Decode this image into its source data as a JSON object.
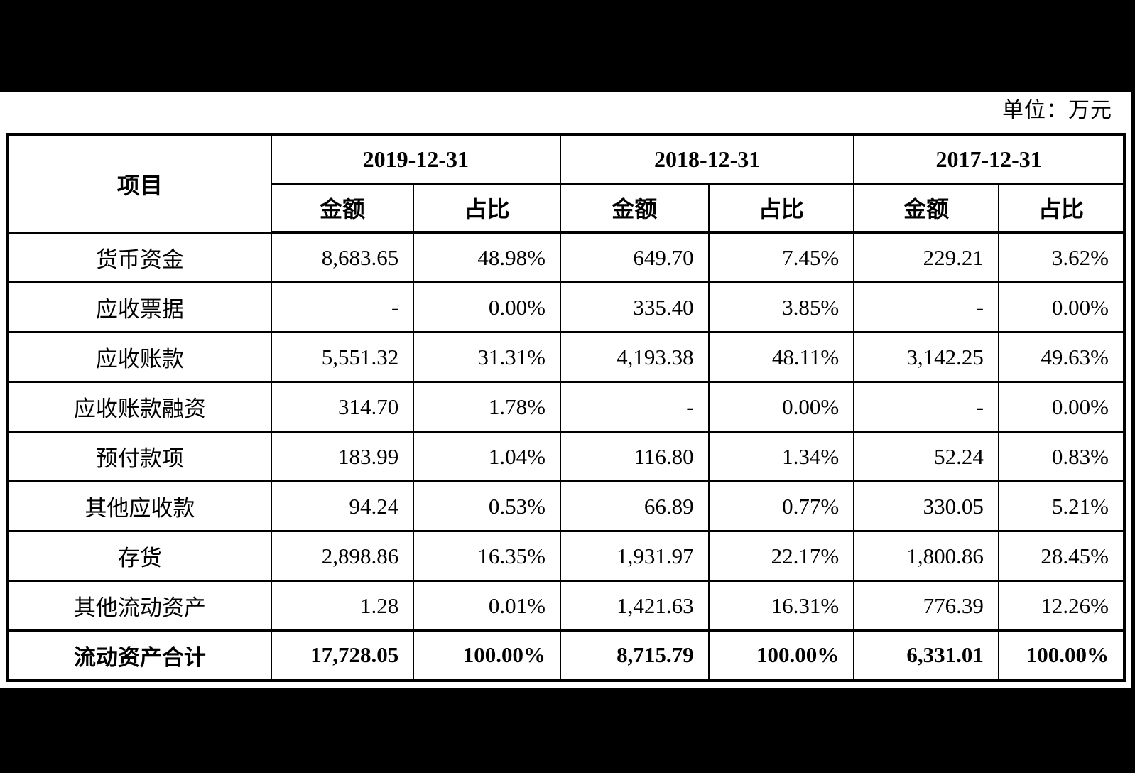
{
  "page": {
    "unit_label": "单位：万元"
  },
  "colors": {
    "frame_bg": "#000000",
    "page_bg": "#ffffff",
    "border": "#000000",
    "text": "#000000"
  },
  "table": {
    "item_header": "项目",
    "period_headers": [
      "2019-12-31",
      "2018-12-31",
      "2017-12-31"
    ],
    "sub_headers": {
      "amount": "金额",
      "ratio": "占比"
    },
    "rows": [
      {
        "item": "货币资金",
        "values": [
          "8,683.65",
          "48.98%",
          "649.70",
          "7.45%",
          "229.21",
          "3.62%"
        ],
        "bold": false
      },
      {
        "item": "应收票据",
        "values": [
          "-",
          "0.00%",
          "335.40",
          "3.85%",
          "-",
          "0.00%"
        ],
        "bold": false
      },
      {
        "item": "应收账款",
        "values": [
          "5,551.32",
          "31.31%",
          "4,193.38",
          "48.11%",
          "3,142.25",
          "49.63%"
        ],
        "bold": false
      },
      {
        "item": "应收账款融资",
        "values": [
          "314.70",
          "1.78%",
          "-",
          "0.00%",
          "-",
          "0.00%"
        ],
        "bold": false
      },
      {
        "item": "预付款项",
        "values": [
          "183.99",
          "1.04%",
          "116.80",
          "1.34%",
          "52.24",
          "0.83%"
        ],
        "bold": false
      },
      {
        "item": "其他应收款",
        "values": [
          "94.24",
          "0.53%",
          "66.89",
          "0.77%",
          "330.05",
          "5.21%"
        ],
        "bold": false
      },
      {
        "item": "存货",
        "values": [
          "2,898.86",
          "16.35%",
          "1,931.97",
          "22.17%",
          "1,800.86",
          "28.45%"
        ],
        "bold": false
      },
      {
        "item": "其他流动资产",
        "values": [
          "1.28",
          "0.01%",
          "1,421.63",
          "16.31%",
          "776.39",
          "12.26%"
        ],
        "bold": false
      },
      {
        "item": "流动资产合计",
        "values": [
          "17,728.05",
          "100.00%",
          "8,715.79",
          "100.00%",
          "6,331.01",
          "100.00%"
        ],
        "bold": true
      }
    ]
  }
}
